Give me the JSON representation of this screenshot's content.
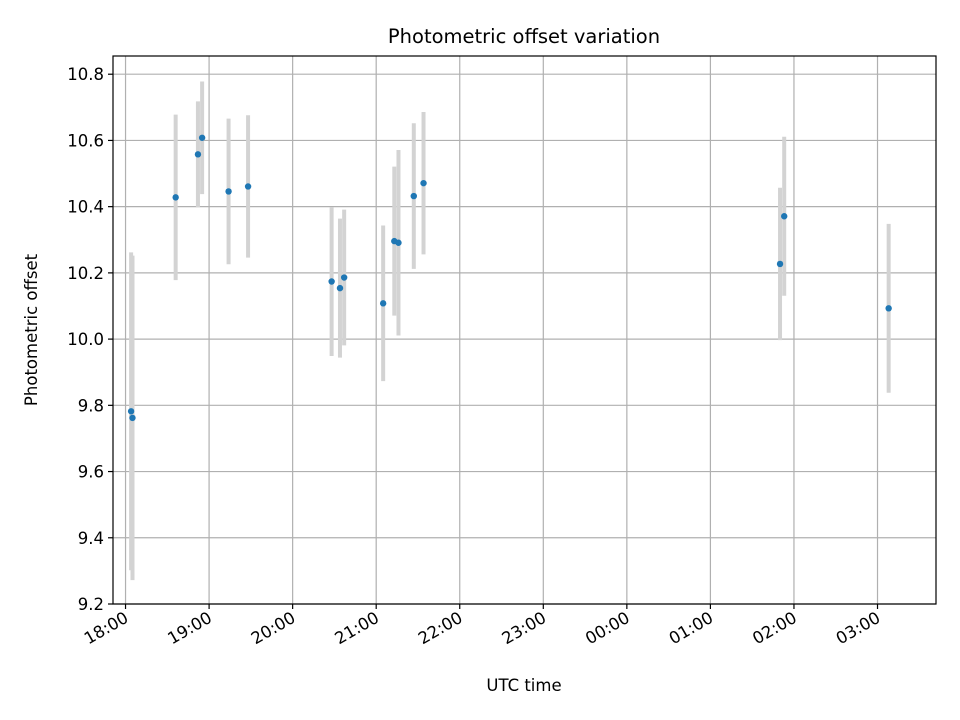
{
  "chart_data": {
    "type": "scatter",
    "title": "Photometric offset variation",
    "xlabel": "UTC time",
    "ylabel": "Photometric offset",
    "x_start": "18:00",
    "xlim": [
      "17:51",
      "03:42"
    ],
    "x_ticks": [
      "18:00",
      "19:00",
      "20:00",
      "21:00",
      "22:00",
      "23:00",
      "00:00",
      "01:00",
      "02:00",
      "03:00"
    ],
    "ylim": [
      9.2,
      10.855
    ],
    "y_ticks": [
      "9.2",
      "9.4",
      "9.6",
      "9.8",
      "10.0",
      "10.2",
      "10.4",
      "10.6",
      "10.8"
    ],
    "grid": true,
    "marker_color": "#1f77b4",
    "errorbar_color": "#d3d3d3",
    "points": [
      {
        "t": "18:04",
        "y": 9.782,
        "err": 0.48
      },
      {
        "t": "18:05",
        "y": 9.762,
        "err": 0.49
      },
      {
        "t": "18:36",
        "y": 10.428,
        "err": 0.25
      },
      {
        "t": "18:52",
        "y": 10.558,
        "err": 0.16
      },
      {
        "t": "18:55",
        "y": 10.608,
        "err": 0.17
      },
      {
        "t": "19:14",
        "y": 10.446,
        "err": 0.22
      },
      {
        "t": "19:28",
        "y": 10.461,
        "err": 0.215
      },
      {
        "t": "20:28",
        "y": 10.174,
        "err": 0.225
      },
      {
        "t": "20:34",
        "y": 10.154,
        "err": 0.21
      },
      {
        "t": "20:37",
        "y": 10.186,
        "err": 0.205
      },
      {
        "t": "21:05",
        "y": 10.108,
        "err": 0.235
      },
      {
        "t": "21:13",
        "y": 10.296,
        "err": 0.225
      },
      {
        "t": "21:16",
        "y": 10.291,
        "err": 0.28
      },
      {
        "t": "21:27",
        "y": 10.432,
        "err": 0.22
      },
      {
        "t": "21:34",
        "y": 10.471,
        "err": 0.215
      },
      {
        "t": "01:50",
        "y": 10.227,
        "err": 0.23
      },
      {
        "t": "01:53",
        "y": 10.371,
        "err": 0.24
      },
      {
        "t": "03:08",
        "y": 10.093,
        "err": 0.255
      }
    ]
  }
}
